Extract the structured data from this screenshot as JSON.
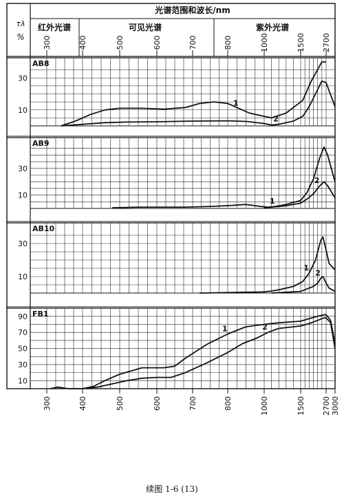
{
  "header": {
    "title": "光谱范围和波长/nm",
    "y_symbol": "τλ",
    "y_unit": "%",
    "regions": [
      "红外光谱",
      "可见光谱",
      "紫外光谱"
    ]
  },
  "caption": "续图 1-6 (13)",
  "colors": {
    "ink": "#111111",
    "grid": "#222222",
    "background": "#ffffff"
  },
  "chart_data": [
    {
      "type": "line",
      "panel": "AB8",
      "ylim": [
        0,
        40
      ],
      "yticks": [
        10,
        30
      ],
      "x_ticks_top": [
        300,
        400,
        500,
        600,
        700,
        800,
        1000,
        1500,
        2700
      ],
      "grid": true,
      "series": [
        {
          "name": "1",
          "x": [
            340,
            380,
            420,
            460,
            500,
            560,
            620,
            680,
            720,
            760,
            800,
            860,
            920,
            1000,
            1100,
            1300,
            1600,
            2000,
            2500,
            2700
          ],
          "y": [
            0,
            3,
            7,
            10,
            11,
            11,
            10.5,
            11.5,
            14,
            15,
            14,
            11,
            8,
            6,
            5,
            8,
            16,
            28,
            40,
            40
          ]
        },
        {
          "name": "2",
          "x": [
            340,
            400,
            460,
            520,
            600,
            700,
            800,
            900,
            1000,
            1100,
            1200,
            1400,
            1600,
            1900,
            2200,
            2500,
            2700,
            3000
          ],
          "y": [
            0,
            1,
            2,
            2.4,
            2.6,
            3,
            3.2,
            2.8,
            1.5,
            0.5,
            1,
            3,
            6,
            12,
            20,
            28,
            27,
            12
          ]
        }
      ]
    },
    {
      "type": "line",
      "panel": "AB9",
      "ylim": [
        0,
        50
      ],
      "yticks": [
        10,
        30
      ],
      "grid": true,
      "series": [
        {
          "name": "1",
          "x": [
            480,
            550,
            620,
            680,
            750,
            820,
            900,
            980,
            1050,
            1150,
            1300,
            1500,
            1800,
            2100,
            2400,
            2600,
            2750,
            3000
          ],
          "y": [
            0.5,
            1,
            1,
            1,
            1.5,
            2.2,
            3,
            1.5,
            1,
            1.5,
            3,
            6,
            12,
            22,
            38,
            46,
            40,
            20
          ]
        },
        {
          "name": "2",
          "x": [
            1000,
            1100,
            1300,
            1500,
            1800,
            2100,
            2400,
            2600,
            2750,
            3000
          ],
          "y": [
            0.5,
            1,
            2,
            4,
            7,
            11,
            17,
            20,
            17,
            8
          ]
        }
      ]
    },
    {
      "type": "line",
      "panel": "AB10",
      "ylim": [
        0,
        40
      ],
      "yticks": [
        10,
        30
      ],
      "grid": true,
      "series": [
        {
          "name": "1",
          "x": [
            720,
            800,
            900,
            1000,
            1100,
            1200,
            1400,
            1600,
            1900,
            2200,
            2450,
            2550,
            2700,
            2800,
            3000
          ],
          "y": [
            0,
            0.3,
            0.5,
            0.7,
            1.2,
            2,
            4,
            7,
            12,
            20,
            32,
            34,
            26,
            18,
            14
          ]
        },
        {
          "name": "2",
          "x": [
            1100,
            1300,
            1500,
            1700,
            1900,
            2100,
            2300,
            2450,
            2550,
            2700,
            2800,
            3000
          ],
          "y": [
            0,
            0.5,
            1,
            2,
            3,
            4,
            6,
            9,
            10,
            6,
            3,
            1
          ]
        }
      ]
    },
    {
      "type": "line",
      "panel": "FB1",
      "ylim": [
        0,
        95
      ],
      "yticks": [
        10,
        30,
        50,
        70,
        90
      ],
      "ytick_labels": [
        "10",
        "30",
        "50",
        "70",
        "90"
      ],
      "x_ticks_bottom": [
        300,
        400,
        500,
        600,
        700,
        800,
        1000,
        1500,
        2700,
        3000
      ],
      "x_tick_labels_bottom": [
        "300",
        "400",
        "500",
        "600",
        "700",
        "800",
        "1000",
        "1500",
        "2700",
        "3000"
      ],
      "grid": true,
      "series": [
        {
          "name": "1",
          "x": [
            310,
            330,
            360,
            400,
            430,
            460,
            500,
            560,
            620,
            650,
            680,
            740,
            800,
            900,
            1000,
            1200,
            1500,
            1900,
            2300,
            2600,
            2700,
            2850,
            3000
          ],
          "y": [
            0,
            2,
            0,
            0,
            3,
            10,
            18,
            26,
            26,
            28,
            38,
            55,
            68,
            77,
            80,
            82,
            84,
            87,
            90,
            92,
            92,
            85,
            55
          ]
        },
        {
          "name": "2",
          "x": [
            400,
            440,
            480,
            520,
            560,
            600,
            640,
            680,
            740,
            800,
            880,
            960,
            1050,
            1200,
            1500,
            1900,
            2300,
            2600,
            2700,
            2850,
            3000
          ],
          "y": [
            0,
            2,
            6,
            10,
            13,
            14,
            14,
            20,
            32,
            45,
            56,
            63,
            70,
            75,
            78,
            81,
            85,
            88,
            88,
            82,
            50
          ]
        }
      ]
    }
  ]
}
